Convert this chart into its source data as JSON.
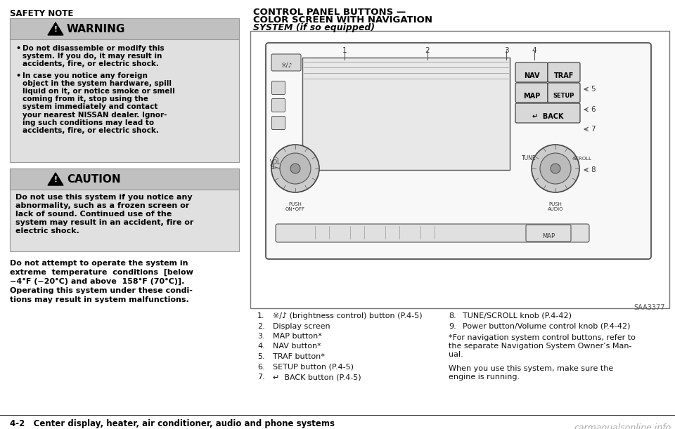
{
  "bg_color": "#ffffff",
  "safety_note_title": "SAFETY NOTE",
  "warning_title": "WARNING",
  "warning_bullets": [
    "Do not disassemble or modify this\nsystem. If you do, it may result in\naccidents, fire, or electric shock.",
    "In case you notice any foreign\nobject in the system hardware, spill\nliquid on it, or notice smoke or smell\ncoming from it, stop using the\nsystem immediately and contact\nyour nearest NISSAN dealer. Ignor-\ning such conditions may lead to\naccidents, fire, or electric shock."
  ],
  "caution_title": "CAUTION",
  "caution_lines": [
    "Do not use this system if you notice any",
    "abnormality, such as a frozen screen or",
    "lack of sound. Continued use of the",
    "system may result in an accident, fire or",
    "electric shock."
  ],
  "bottom_note_lines": [
    "Do not attempt to operate the system in",
    "extreme  temperature  conditions  [below",
    "−4°F (−20°C) and above  158°F (70°C)].",
    "Operating this system under these condi-",
    "tions may result in system malfunctions."
  ],
  "right_title_line1": "CONTROL PANEL BUTTONS —",
  "right_title_line2": "COLOR SCREEN WITH NAVIGATION",
  "right_title_line3": "SYSTEM (if so equipped)",
  "list_items_col1": [
    [
      "1.",
      "※/♪ (brightness control) button (P.4-5)"
    ],
    [
      "2.",
      "Display screen"
    ],
    [
      "3.",
      "MAP button*"
    ],
    [
      "4.",
      "NAV button*"
    ],
    [
      "5.",
      "TRAF button*"
    ],
    [
      "6.",
      "SETUP button (P.4-5)"
    ],
    [
      "7.",
      "↵  BACK button (P.4-5)"
    ]
  ],
  "list_items_col2": [
    [
      "8.",
      "TUNE/SCROLL knob (P.4-42)"
    ],
    [
      "9.",
      "Power button/Volume control knob (P.4-42)"
    ]
  ],
  "footnote1_lines": [
    "*For navigation system control buttons, refer to",
    "the separate Navigation System Owner’s Man-",
    "ual."
  ],
  "footnote2_lines": [
    "When you use this system, make sure the",
    "engine is running."
  ],
  "footer_text": "4-2   Center display, heater, air conditioner, audio and phone systems",
  "watermark": "carmanualsonline.info",
  "diagram_ref": "SAA3377",
  "gray_bg": "#e0e0e0",
  "warn_hdr_bg": "#c0c0c0",
  "caut_hdr_bg": "#c0c0c0",
  "box_edge": "#999999",
  "panel_bg": "#f8f8f8"
}
